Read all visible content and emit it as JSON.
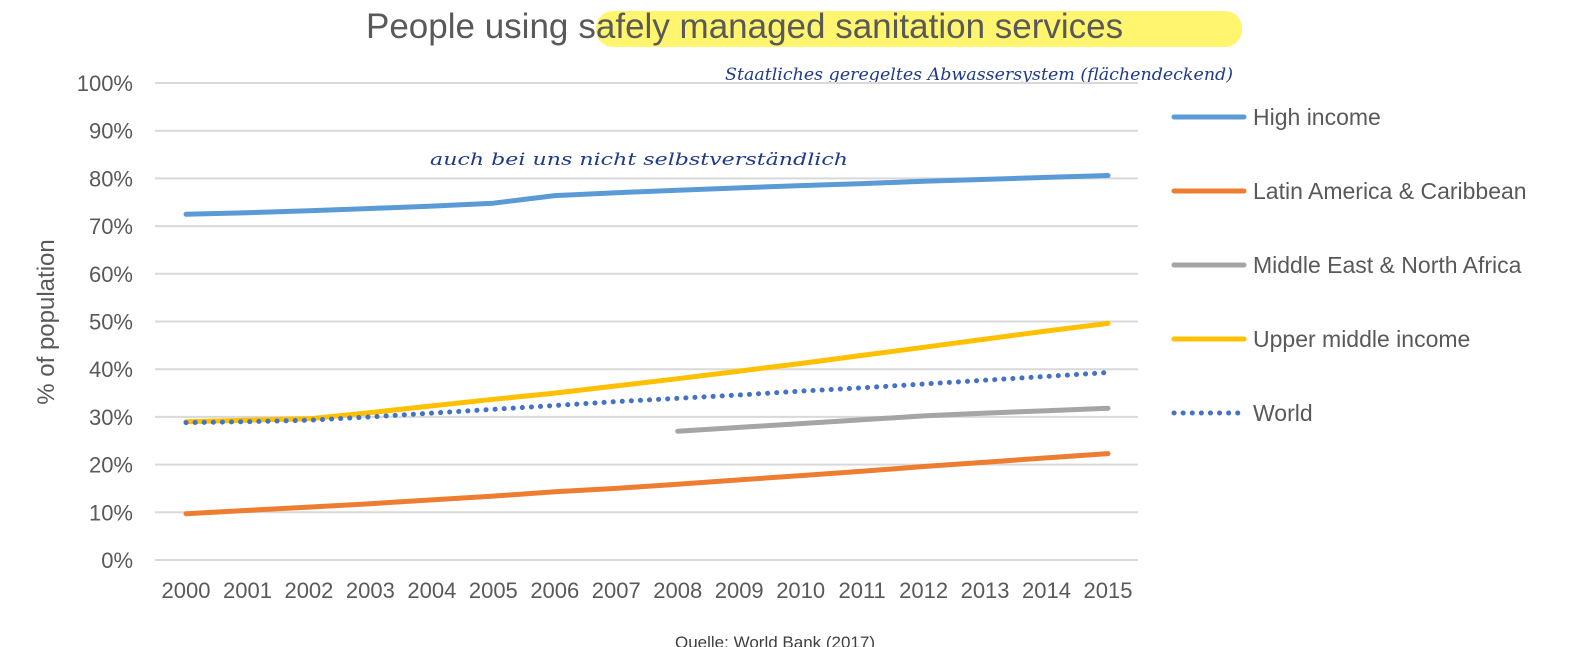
{
  "chart_data": {
    "type": "line",
    "title_prefix": "People using",
    "title_highlight": "safely managed sanitation services",
    "xlabel": "",
    "ylabel": "% of population",
    "x": [
      "2000",
      "2001",
      "2002",
      "2003",
      "2004",
      "2005",
      "2006",
      "2007",
      "2008",
      "2009",
      "2010",
      "2011",
      "2012",
      "2013",
      "2014",
      "2015"
    ],
    "y_ticks": [
      "0%",
      "10%",
      "20%",
      "30%",
      "40%",
      "50%",
      "60%",
      "70%",
      "80%",
      "90%",
      "100%"
    ],
    "ylim": [
      0,
      100
    ],
    "grid": true,
    "legend_position": "right",
    "series": [
      {
        "name": "High income",
        "color": "#5B9BD5",
        "style": "solid",
        "values": [
          72.5,
          72.8,
          73.2,
          73.7,
          74.2,
          74.8,
          76.4,
          77.0,
          77.5,
          78.0,
          78.5,
          78.9,
          79.4,
          79.8,
          80.2,
          80.6
        ]
      },
      {
        "name": "Latin America & Caribbean",
        "color": "#ED7D31",
        "style": "solid",
        "values": [
          9.7,
          10.4,
          11.1,
          11.8,
          12.6,
          13.4,
          14.3,
          15.0,
          15.9,
          16.8,
          17.7,
          18.6,
          19.6,
          20.5,
          21.4,
          22.3
        ]
      },
      {
        "name": "Middle East & North Africa",
        "color": "#A5A5A5",
        "style": "solid",
        "values": [
          null,
          null,
          null,
          null,
          null,
          null,
          null,
          null,
          27.0,
          27.8,
          28.6,
          29.4,
          30.2,
          30.8,
          31.3,
          31.8
        ]
      },
      {
        "name": "Upper middle income",
        "color": "#FFC000",
        "style": "solid",
        "values": [
          29.0,
          29.3,
          29.6,
          30.9,
          32.3,
          33.7,
          35.0,
          36.5,
          38.0,
          39.6,
          41.2,
          42.9,
          44.6,
          46.3,
          48.0,
          49.6
        ]
      },
      {
        "name": "World",
        "color": "#4472C4",
        "style": "dotted",
        "values": [
          28.8,
          29.0,
          29.3,
          30.0,
          30.8,
          31.6,
          32.4,
          33.2,
          33.9,
          34.6,
          35.4,
          36.1,
          36.9,
          37.7,
          38.5,
          39.3
        ]
      }
    ],
    "annotations": {
      "top": "Staatliches geregeltes Abwassersystem (flächendeckend)",
      "middle": "auch bei uns nicht selbstverständlich"
    },
    "highlight_color": "#FFF56E",
    "source": "Quelle: World Bank (2017)"
  }
}
